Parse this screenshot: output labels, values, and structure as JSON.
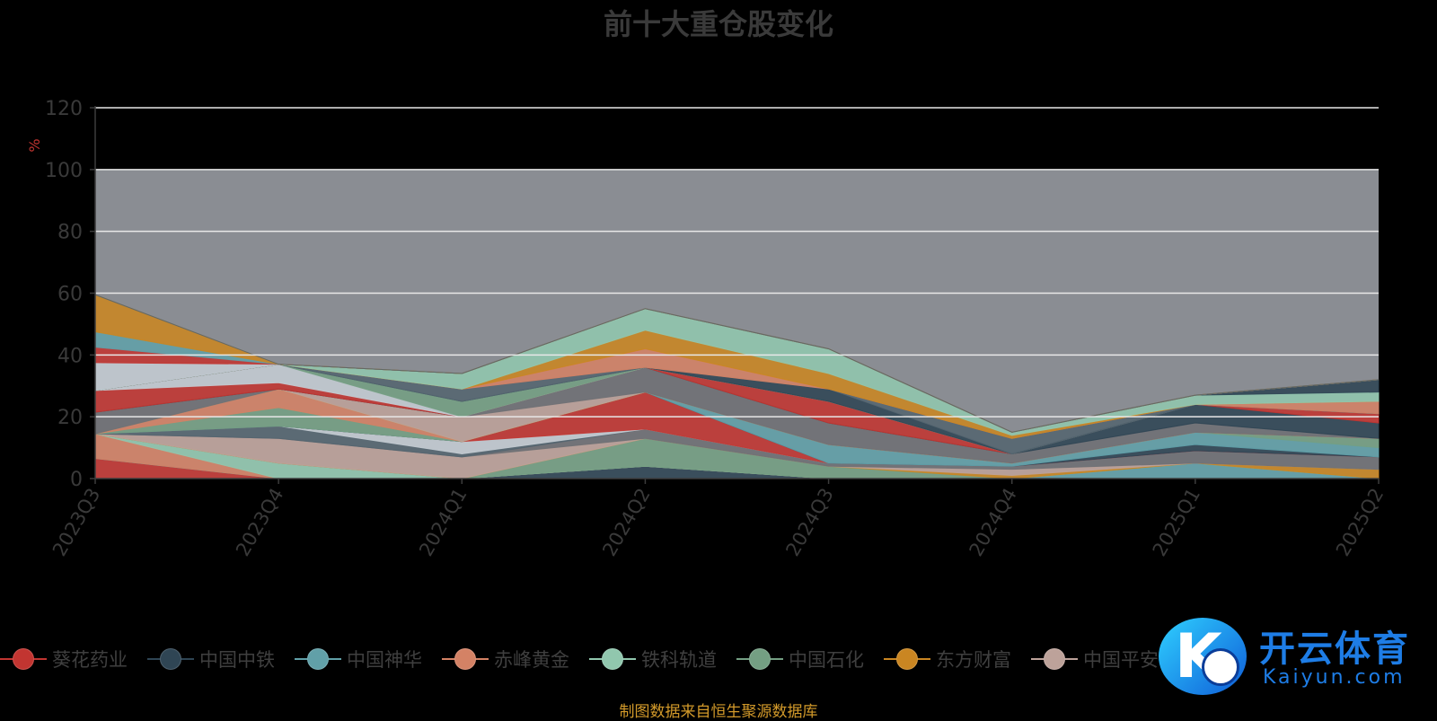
{
  "chart_data": {
    "type": "area",
    "title": "前十大重仓股变化",
    "ylabel": "%",
    "ylim": [
      0,
      120
    ],
    "yticks": [
      0,
      20,
      40,
      60,
      80,
      100,
      120
    ],
    "x": [
      "2023Q3",
      "2023Q4",
      "2024Q1",
      "2024Q2",
      "2024Q3",
      "2024Q4",
      "2025Q1",
      "2025Q2"
    ],
    "stacked": true,
    "series": [
      {
        "name": "葵花药业",
        "color": "#c23531",
        "values": [
          6.5,
          0,
          0,
          0,
          0,
          0,
          0,
          0
        ]
      },
      {
        "name": "中国中铁",
        "color": "#2f4554",
        "values": [
          0,
          0,
          0,
          4,
          0,
          0,
          0,
          0
        ]
      },
      {
        "name": "中国神华",
        "color": "#61a0a8",
        "values": [
          0,
          0,
          0,
          0,
          0,
          0,
          5,
          0
        ]
      },
      {
        "name": "赤峰黄金",
        "color": "#d48265",
        "values": [
          8,
          0,
          0,
          0,
          0,
          0,
          0,
          0
        ]
      },
      {
        "name": "铁科轨道",
        "color": "#91c7ae",
        "values": [
          0,
          5,
          0,
          0,
          0,
          0,
          0,
          0
        ]
      },
      {
        "name": "中国石化",
        "color": "#749f83",
        "values": [
          0,
          0,
          0,
          9,
          4,
          0,
          0,
          0
        ]
      },
      {
        "name": "东方财富",
        "color": "#ca8622",
        "values": [
          0,
          0,
          0,
          0,
          0,
          1,
          0,
          3
        ]
      },
      {
        "name": "中国平安",
        "color": "#bda29a",
        "values": [
          0,
          8,
          7,
          0,
          0,
          2,
          0,
          0
        ]
      },
      {
        "name": "",
        "color": "#6e7074",
        "values": [
          0,
          0,
          0,
          3,
          1,
          1,
          4,
          4
        ]
      },
      {
        "name": "",
        "color": "#546570",
        "values": [
          0,
          4,
          1,
          0,
          0,
          0,
          0,
          0
        ]
      },
      {
        "name": "",
        "color": "#c4ccd3",
        "values": [
          0,
          0,
          4,
          0,
          0,
          0,
          0,
          0
        ]
      },
      {
        "name": "",
        "color": "#c23531",
        "values": [
          0,
          0,
          0,
          12,
          0,
          0,
          0,
          0
        ]
      },
      {
        "name": "",
        "color": "#2f4554",
        "values": [
          0,
          0,
          0,
          0,
          0,
          0,
          2,
          0
        ]
      },
      {
        "name": "",
        "color": "#61a0a8",
        "values": [
          0,
          0,
          0,
          0,
          6,
          1,
          4,
          3
        ]
      },
      {
        "name": "",
        "color": "#749f83",
        "values": [
          0,
          6,
          0,
          0,
          0,
          0,
          0,
          3
        ]
      },
      {
        "name": "",
        "color": "#d48265",
        "values": [
          0,
          6,
          0,
          0,
          0,
          0,
          0,
          0
        ]
      },
      {
        "name": "",
        "color": "#ca8622",
        "values": [
          0,
          0,
          0,
          0,
          0,
          0,
          0,
          0
        ]
      },
      {
        "name": "",
        "color": "#bda29a",
        "values": [
          0,
          0,
          8,
          0,
          0,
          0,
          0,
          0
        ]
      },
      {
        "name": "",
        "color": "#6e7074",
        "values": [
          7,
          0,
          0,
          8,
          7,
          3,
          3,
          0
        ]
      },
      {
        "name": "",
        "color": "#2f4554",
        "values": [
          0,
          0,
          0,
          0,
          0,
          0,
          6,
          5
        ]
      },
      {
        "name": "",
        "color": "#c23531",
        "values": [
          7,
          2,
          0,
          0,
          7,
          0,
          0,
          3
        ]
      },
      {
        "name": "",
        "color": "#c4ccd3",
        "values": [
          0,
          6,
          0,
          0,
          0,
          0,
          0,
          0
        ]
      },
      {
        "name": "",
        "color": "#749f83",
        "values": [
          0,
          0,
          5,
          0,
          0,
          0,
          0,
          0
        ]
      },
      {
        "name": "",
        "color": "#2f4554",
        "values": [
          0,
          0,
          0,
          0,
          4,
          0,
          0,
          0
        ]
      },
      {
        "name": "",
        "color": "#546570",
        "values": [
          0,
          0,
          4,
          0,
          0,
          5,
          0,
          0
        ]
      },
      {
        "name": "",
        "color": "#d48265",
        "values": [
          0,
          0,
          0,
          6,
          0,
          0,
          0,
          4
        ]
      },
      {
        "name": "",
        "color": "#ca8622",
        "values": [
          0,
          0,
          0,
          6,
          5,
          1,
          0,
          0
        ]
      },
      {
        "name": "",
        "color": "#91c7ae",
        "values": [
          0,
          0,
          5,
          7,
          8,
          1,
          3,
          3
        ]
      },
      {
        "name": "",
        "color": "#2f4554",
        "values": [
          0,
          0,
          0,
          0,
          0,
          0,
          0,
          4
        ]
      },
      {
        "name": "",
        "color": "#c4ccd3",
        "values": [
          9,
          0,
          0,
          0,
          0,
          0,
          0,
          0
        ]
      },
      {
        "name": "",
        "color": "#c23531",
        "values": [
          5,
          0,
          0,
          0,
          0,
          0,
          0,
          0
        ]
      },
      {
        "name": "",
        "color": "#61a0a8",
        "values": [
          5,
          0,
          0,
          0,
          0,
          0,
          0,
          0
        ]
      },
      {
        "name": "",
        "color": "#ca8622",
        "values": [
          12,
          0,
          0,
          0,
          0,
          0,
          0,
          0
        ]
      },
      {
        "name": "",
        "color": "#546570",
        "values": [
          0,
          0,
          0,
          0,
          0,
          0,
          0,
          0
        ]
      }
    ]
  },
  "legend": {
    "items": [
      {
        "label": "葵花药业",
        "color": "#c23531"
      },
      {
        "label": "中国中铁",
        "color": "#2f4554"
      },
      {
        "label": "中国神华",
        "color": "#61a0a8"
      },
      {
        "label": "赤峰黄金",
        "color": "#d48265"
      },
      {
        "label": "铁科轨道",
        "color": "#91c7ae"
      },
      {
        "label": "中国石化",
        "color": "#749f83"
      },
      {
        "label": "东方财富",
        "color": "#ca8622"
      },
      {
        "label": "中国平安",
        "color": "#bda29a"
      },
      {
        "label": "",
        "color": "#61a0a8"
      }
    ]
  },
  "source_note": "制图数据来自恒生聚源数据库",
  "watermark": {
    "text": "开云体育",
    "subtext": "Kaiyun.com",
    "letter": "K"
  }
}
